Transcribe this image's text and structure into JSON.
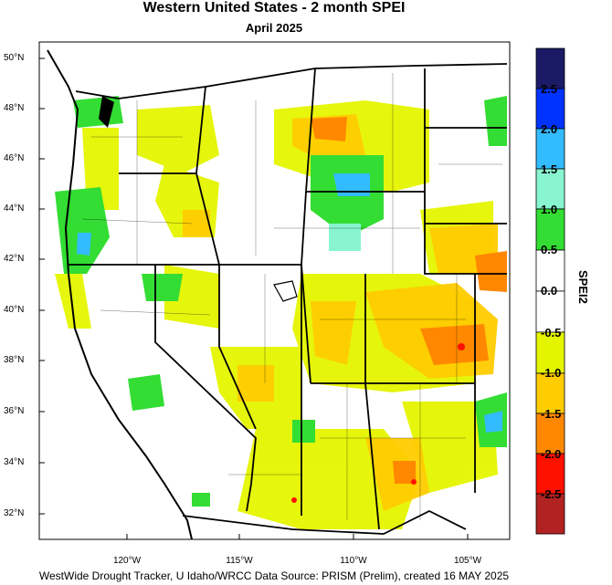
{
  "title": "Western United States - 2 month SPEI",
  "subtitle": "April 2025",
  "credit": "WestWide Drought Tracker, U Idaho/WRCC Data Source: PRISM (Prelim), created 16 MAY 2025",
  "map": {
    "lat_ticks": [
      "50°N",
      "48°N",
      "46°N",
      "44°N",
      "42°N",
      "40°N",
      "38°N",
      "36°N",
      "34°N",
      "32°N"
    ],
    "lon_ticks": [
      "120°W",
      "115°W",
      "110°W",
      "105°W"
    ]
  },
  "colorbar": {
    "title": "SPEI2",
    "labels": [
      "2.5",
      "2.0",
      "1.5",
      "1.0",
      "0.5",
      "0.0",
      "-0.5",
      "-1.0",
      "-1.5",
      "-2.0",
      "-2.5"
    ],
    "colors": [
      "#1a1a66",
      "#0033ff",
      "#33bbff",
      "#88f5d0",
      "#33dd33",
      "#ffffff",
      "#ffffff",
      "#e5f500",
      "#ffcc00",
      "#ff8800",
      "#ff1100",
      "#b22222"
    ]
  },
  "colors": {
    "wet_light": "#88f5d0",
    "wet_green": "#33dd33",
    "wet_blue": "#33bbff",
    "dry_yellowgreen": "#e5f500",
    "dry_orange": "#ffcc00",
    "dry_darkorange": "#ff8800",
    "dry_red": "#ff1100"
  }
}
